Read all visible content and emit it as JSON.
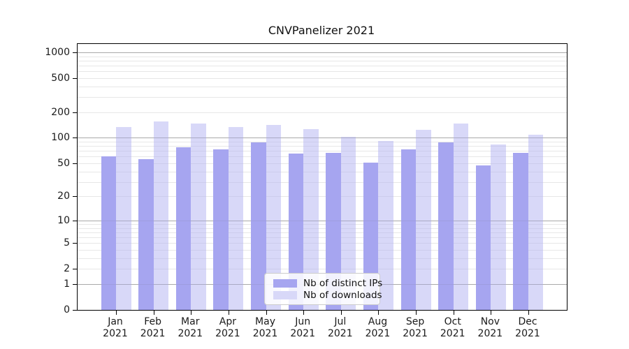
{
  "title": "CNVPanelizer 2021",
  "chart_data": {
    "type": "bar",
    "title": "CNVPanelizer 2021",
    "categories": [
      "Jan 2021",
      "Feb 2021",
      "Mar 2021",
      "Apr 2021",
      "May 2021",
      "Jun 2021",
      "Jul 2021",
      "Aug 2021",
      "Sep 2021",
      "Oct 2021",
      "Nov 2021",
      "Dec 2021"
    ],
    "series": [
      {
        "name": "Nb of distinct IPs",
        "color": "#a6a5f0",
        "rgba": "rgba(166,165,240,1)",
        "values": [
          60,
          56,
          77,
          73,
          88,
          65,
          66,
          51,
          73,
          89,
          47,
          66
        ]
      },
      {
        "name": "Nb of downloads",
        "color": "#d8d8f8",
        "rgba": "rgba(177,177,241,0.5)",
        "values": [
          133,
          155,
          147,
          135,
          141,
          126,
          102,
          92,
          124,
          146,
          83,
          108
        ]
      }
    ],
    "xlabel": "",
    "ylabel": "",
    "yscale": "log1p",
    "yticks": [
      0,
      1,
      2,
      5,
      10,
      20,
      50,
      100,
      200,
      500,
      1000
    ],
    "major_grid_values": [
      1,
      10,
      100,
      1000
    ],
    "ylim": [
      0,
      1250
    ],
    "grid": true,
    "legend_position": "lower center inside"
  },
  "legend": {
    "items": [
      "Nb of distinct IPs",
      "Nb of downloads"
    ]
  },
  "colors": {
    "distinct_ips": "#a6a5f0",
    "downloads": "#d8d8f8",
    "grid_minor": "#e7e7e7",
    "grid_major": "#b2b2b2",
    "axis": "#000000"
  }
}
